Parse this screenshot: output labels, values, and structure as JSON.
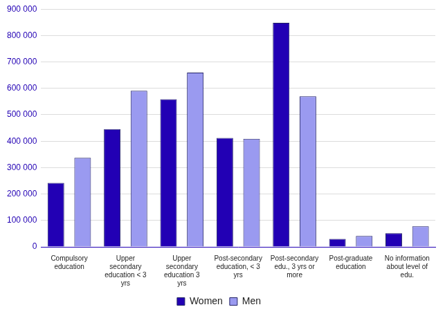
{
  "chart_data": {
    "type": "bar",
    "categories": [
      "Compulsory education",
      "Upper secondary education < 3 yrs",
      "Upper secondary education 3 yrs",
      "Post-secondary education, < 3 yrs",
      "Post-secondary edu., 3 yrs or more",
      "Post-graduate education",
      "No information about level of edu."
    ],
    "series": [
      {
        "name": "Women",
        "color": "#2200b4",
        "values": [
          242000,
          446000,
          559000,
          412000,
          848000,
          30000,
          52000
        ]
      },
      {
        "name": "Men",
        "color": "#9a9af0",
        "values": [
          337000,
          591000,
          660000,
          409000,
          570000,
          41000,
          78000
        ]
      }
    ],
    "ylim": [
      0,
      900000
    ],
    "yticks": [
      0,
      {
        "value": 100000,
        "label": "100 000"
      },
      {
        "value": 200000,
        "label": "200 000"
      },
      {
        "value": 300000,
        "label": "300 000"
      },
      {
        "value": 400000,
        "label": "400 000"
      },
      {
        "value": 500000,
        "label": "500 000"
      },
      {
        "value": 600000,
        "label": "600 000"
      },
      {
        "value": 700000,
        "label": "700 000"
      },
      {
        "value": 800000,
        "label": "800 000"
      },
      {
        "value": 900000,
        "label": "900 000"
      }
    ],
    "grid": true,
    "legend": "bottom"
  }
}
